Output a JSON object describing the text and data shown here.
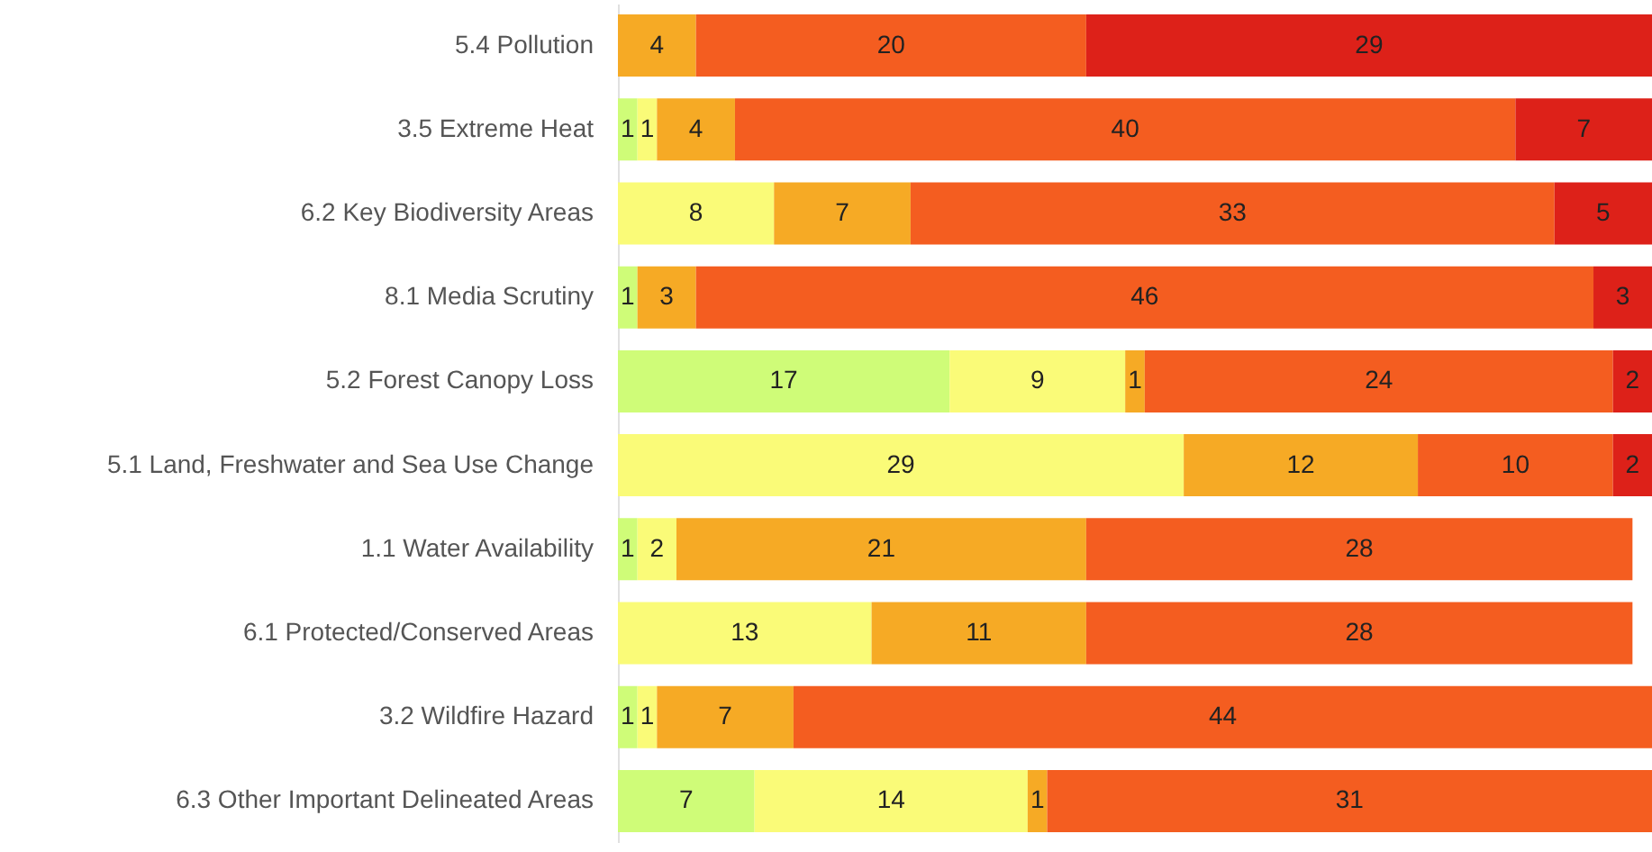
{
  "chart_data": {
    "type": "bar",
    "orientation": "horizontal",
    "stacked": true,
    "data_labels": true,
    "legend": false,
    "tick_labels": "y",
    "categories": [
      "5.4 Pollution",
      "3.5 Extreme Heat",
      "6.2 Key Biodiversity Areas",
      "8.1 Media Scrutiny",
      "5.2 Forest Canopy Loss",
      "5.1 Land, Freshwater and Sea Use Change",
      "1.1 Water Availability",
      "6.1 Protected/Conserved Areas",
      "3.2 Wildfire Hazard",
      "6.3 Other Important Delineated Areas"
    ],
    "xlim": [
      0,
      53
    ],
    "series": [
      {
        "color": "#cffc78",
        "values": [
          null,
          1,
          null,
          1,
          17,
          null,
          1,
          null,
          1,
          7
        ]
      },
      {
        "color": "#fafb78",
        "values": [
          null,
          1,
          8,
          null,
          9,
          29,
          2,
          13,
          1,
          14
        ]
      },
      {
        "color": "#f6aa25",
        "values": [
          4,
          4,
          7,
          3,
          1,
          12,
          21,
          11,
          7,
          1
        ]
      },
      {
        "color": "#f45d20",
        "values": [
          20,
          40,
          33,
          46,
          24,
          10,
          28,
          28,
          44,
          31
        ]
      },
      {
        "color": "#dd2119",
        "values": [
          29,
          7,
          5,
          3,
          2,
          2,
          null,
          null,
          null,
          null
        ]
      }
    ]
  }
}
